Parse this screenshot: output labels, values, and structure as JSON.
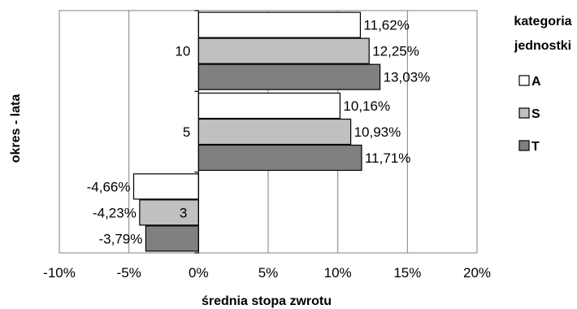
{
  "chart_data": {
    "type": "bar",
    "orientation": "horizontal",
    "categories": [
      "10",
      "5",
      "3"
    ],
    "series": [
      {
        "name": "A",
        "values": [
          11.62,
          10.16,
          -4.66
        ],
        "labels": [
          "11,62%",
          "10,16%",
          "-4,66%"
        ],
        "color": "#ffffff"
      },
      {
        "name": "S",
        "values": [
          12.25,
          10.93,
          -4.23
        ],
        "labels": [
          "12,25%",
          "10,93%",
          "-4,23%"
        ],
        "color": "#c0c0c0"
      },
      {
        "name": "T",
        "values": [
          13.03,
          11.71,
          -3.79
        ],
        "labels": [
          "13,03%",
          "11,71%",
          "-3,79%"
        ],
        "color": "#808080"
      }
    ],
    "xlim": [
      -10,
      20
    ],
    "xticks": [
      -10,
      -5,
      0,
      5,
      10,
      15,
      20
    ],
    "xtick_labels": [
      "-10%",
      "-5%",
      "0%",
      "5%",
      "10%",
      "15%",
      "20%"
    ],
    "xlabel": "średnia stopa zwrotu",
    "ylabel": "okres - lata",
    "legend_title_lines": [
      "kategoria",
      "jednostki"
    ],
    "legend_position": "right",
    "grid": "vertical"
  }
}
